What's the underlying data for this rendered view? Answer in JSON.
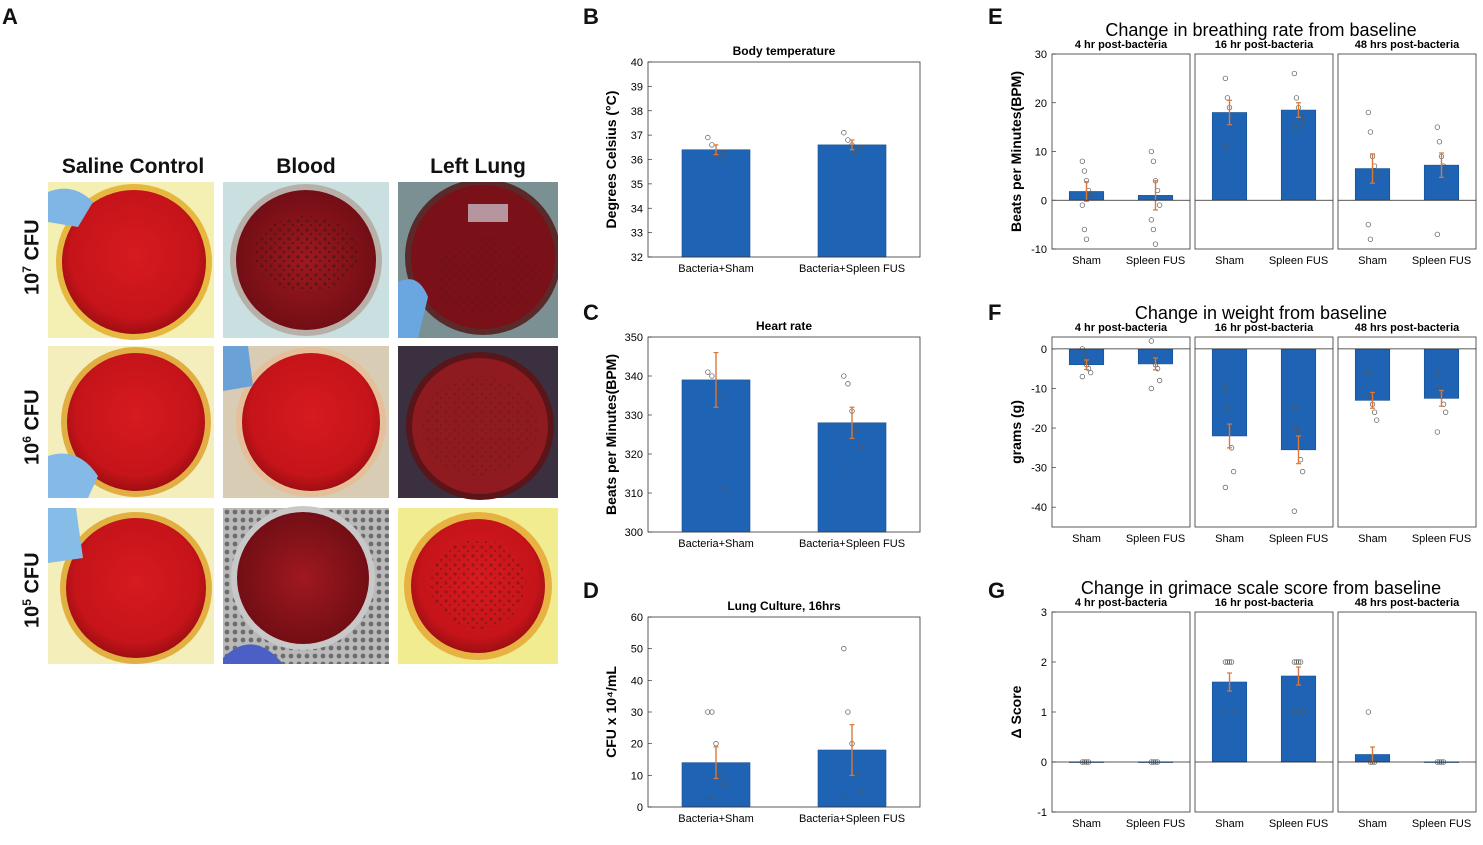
{
  "panel_letters": [
    "A",
    "B",
    "C",
    "D",
    "E",
    "F",
    "G"
  ],
  "panelA": {
    "columns": [
      "Saline Control",
      "Blood",
      "Left Lung"
    ],
    "rows": [
      {
        "base": "10",
        "exp": "7",
        "unit": " CFU"
      },
      {
        "base": "10",
        "exp": "6",
        "unit": " CFU"
      },
      {
        "base": "10",
        "exp": "5",
        "unit": " CFU"
      }
    ],
    "plate_color": "#c8141a"
  },
  "chart_data": [
    {
      "id": "B",
      "type": "bar",
      "title": "Body temperature",
      "ylabel": "Degrees Celsius (°C)",
      "categories": [
        "Bacteria+Sham",
        "Bacteria+Spleen FUS"
      ],
      "values": [
        36.4,
        36.6
      ],
      "errors": [
        0.2,
        0.2
      ],
      "ylim": [
        32,
        40
      ],
      "yticks": [
        32,
        33,
        34,
        35,
        36,
        37,
        38,
        39,
        40
      ],
      "points": [
        [
          36.9,
          36.6,
          36.2,
          36.0,
          36.3
        ],
        [
          37.1,
          36.8,
          36.6,
          36.3,
          36.5
        ]
      ]
    },
    {
      "id": "C",
      "type": "bar",
      "title": "Heart rate",
      "ylabel": "Beats per Minutes(BPM)",
      "categories": [
        "Bacteria+Sham",
        "Bacteria+Spleen FUS"
      ],
      "values": [
        339,
        328
      ],
      "errors": [
        7,
        4
      ],
      "ylim": [
        300,
        350
      ],
      "yticks": [
        300,
        310,
        320,
        330,
        340,
        350
      ],
      "points": [
        [
          341,
          340,
          336,
          334,
          311
        ],
        [
          340,
          338,
          331,
          326,
          322,
          315
        ]
      ]
    },
    {
      "id": "D",
      "type": "bar",
      "title": "Lung Culture, 16hrs",
      "ylabel": "CFU x 10⁴/mL",
      "categories": [
        "Bacteria+Sham",
        "Bacteria+Spleen FUS"
      ],
      "values": [
        14,
        18
      ],
      "errors": [
        5,
        8
      ],
      "ylim": [
        0,
        60
      ],
      "yticks": [
        0,
        10,
        20,
        30,
        40,
        50,
        60
      ],
      "points": [
        [
          30,
          30,
          20,
          10,
          7,
          3,
          3
        ],
        [
          50,
          30,
          20,
          10,
          5,
          3
        ]
      ]
    },
    {
      "id": "E",
      "type": "bar",
      "title": "Change in breathing rate from baseline",
      "ylabel": "Beats per Minutes(BPM)",
      "facets": [
        "4 hr post-bacteria",
        "16 hr post-bacteria",
        "48 hrs post-bacteria"
      ],
      "categories": [
        "Sham",
        "Spleen FUS"
      ],
      "ylim": [
        -10,
        30
      ],
      "yticks": [
        -10,
        0,
        10,
        20,
        30
      ],
      "series": [
        {
          "name": "4 hr post-bacteria",
          "values": [
            1.8,
            1.0
          ],
          "errors": [
            2,
            3
          ],
          "points": [
            [
              8,
              6,
              4,
              2,
              1,
              -1,
              -6,
              -8
            ],
            [
              10,
              8,
              4,
              2,
              -1,
              -4,
              -6,
              -9
            ]
          ]
        },
        {
          "name": "16 hr post-bacteria",
          "values": [
            18,
            18.5
          ],
          "errors": [
            2.5,
            1.5
          ],
          "points": [
            [
              25,
              21,
              19,
              17,
              15,
              11
            ],
            [
              26,
              21,
              19,
              17,
              16,
              15
            ]
          ]
        },
        {
          "name": "48 hrs post-bacteria",
          "values": [
            6.5,
            7.2
          ],
          "errors": [
            3,
            2.5
          ],
          "points": [
            [
              18,
              14,
              9,
              7,
              5,
              -5,
              -8
            ],
            [
              15,
              12,
              9,
              7,
              5,
              -7
            ]
          ]
        }
      ]
    },
    {
      "id": "F",
      "type": "bar",
      "title": "Change in weight from baseline",
      "ylabel": "grams (g)",
      "facets": [
        "4 hr post-bacteria",
        "16 hr post-bacteria",
        "48 hrs post-bacteria"
      ],
      "categories": [
        "Sham",
        "Spleen FUS"
      ],
      "ylim": [
        -45,
        3
      ],
      "yticks": [
        -40,
        -30,
        -20,
        -10,
        0
      ],
      "series": [
        {
          "name": "4 hr post-bacteria",
          "values": [
            -4,
            -3.8
          ],
          "errors": [
            1.2,
            1.5
          ],
          "points": [
            [
              0,
              -2,
              -4,
              -5,
              -6,
              -7
            ],
            [
              2,
              -2,
              -4,
              -5,
              -8,
              -10
            ]
          ]
        },
        {
          "name": "16 hr post-bacteria",
          "values": [
            -22,
            -25.5
          ],
          "errors": [
            3,
            3.5
          ],
          "points": [
            [
              -10,
              -15,
              -20,
              -25,
              -31,
              -35
            ],
            [
              -15,
              -20,
              -21,
              -28,
              -31,
              -41
            ]
          ]
        },
        {
          "name": "48 hrs post-bacteria",
          "values": [
            -13,
            -12.5
          ],
          "errors": [
            2,
            2
          ],
          "points": [
            [
              -6,
              -12,
              -14,
              -16,
              -18
            ],
            [
              -6,
              -10,
              -12,
              -14,
              -16,
              -21
            ]
          ]
        }
      ]
    },
    {
      "id": "G",
      "type": "bar",
      "title": "Change in grimace scale score from baseline",
      "ylabel": "Δ Score",
      "facets": [
        "4 hr post-bacteria",
        "16 hr post-bacteria",
        "48 hrs post-bacteria"
      ],
      "categories": [
        "Sham",
        "Spleen FUS"
      ],
      "ylim": [
        -1,
        3
      ],
      "yticks": [
        -1,
        0,
        1,
        2,
        3
      ],
      "series": [
        {
          "name": "4 hr post-bacteria",
          "values": [
            0,
            0
          ],
          "errors": [
            0,
            0
          ],
          "points": [
            [
              0,
              0,
              0,
              0
            ],
            [
              0,
              0,
              0,
              0
            ]
          ]
        },
        {
          "name": "16 hr post-bacteria",
          "values": [
            1.6,
            1.72
          ],
          "errors": [
            0.18,
            0.18
          ],
          "points": [
            [
              2,
              2,
              2,
              2,
              1,
              1
            ],
            [
              2,
              2,
              2,
              2,
              1,
              1
            ]
          ]
        },
        {
          "name": "48 hrs post-bacteria",
          "values": [
            0.15,
            0
          ],
          "errors": [
            0.15,
            0
          ],
          "points": [
            [
              1,
              0,
              0,
              0
            ],
            [
              0,
              0,
              0,
              0
            ]
          ]
        }
      ]
    }
  ],
  "colors": {
    "bar": "#1f64b4",
    "bar_edge": "#174f91",
    "error": "#d9783a",
    "points": "#555555"
  }
}
